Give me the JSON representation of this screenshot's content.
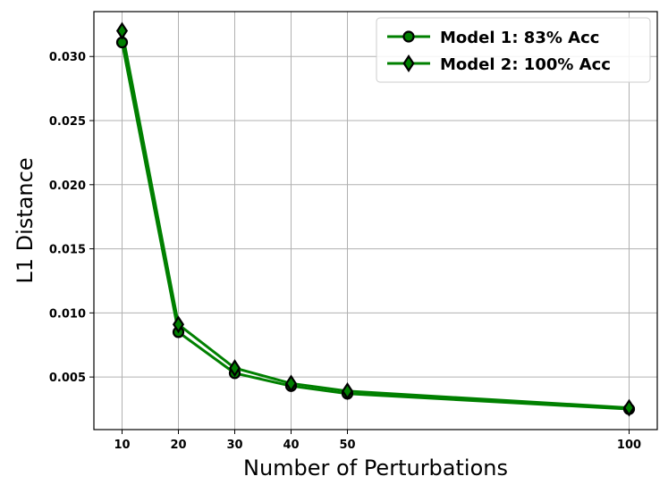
{
  "chart_data": {
    "type": "line",
    "xlabel": "Number of Perturbations",
    "ylabel": "L1 Distance",
    "x": [
      10,
      20,
      30,
      40,
      50,
      100
    ],
    "xticks": [
      "10",
      "20",
      "30",
      "40",
      "50",
      "100"
    ],
    "yticks": [
      "0.005",
      "0.010",
      "0.015",
      "0.020",
      "0.025",
      "0.030"
    ],
    "xlim": [
      5,
      105
    ],
    "ylim": [
      0.0009,
      0.0335
    ],
    "grid": true,
    "legend_position": "top-right",
    "line_color": "#008000",
    "marker_edge_color": "#000000",
    "series": [
      {
        "name": "Model 1: 83% Acc",
        "marker": "circle",
        "values": [
          0.0311,
          0.0085,
          0.0053,
          0.0043,
          0.0037,
          0.0025
        ]
      },
      {
        "name": "Model 2: 100% Acc",
        "marker": "diamond",
        "values": [
          0.032,
          0.0091,
          0.0057,
          0.0045,
          0.0039,
          0.0026
        ]
      }
    ]
  }
}
